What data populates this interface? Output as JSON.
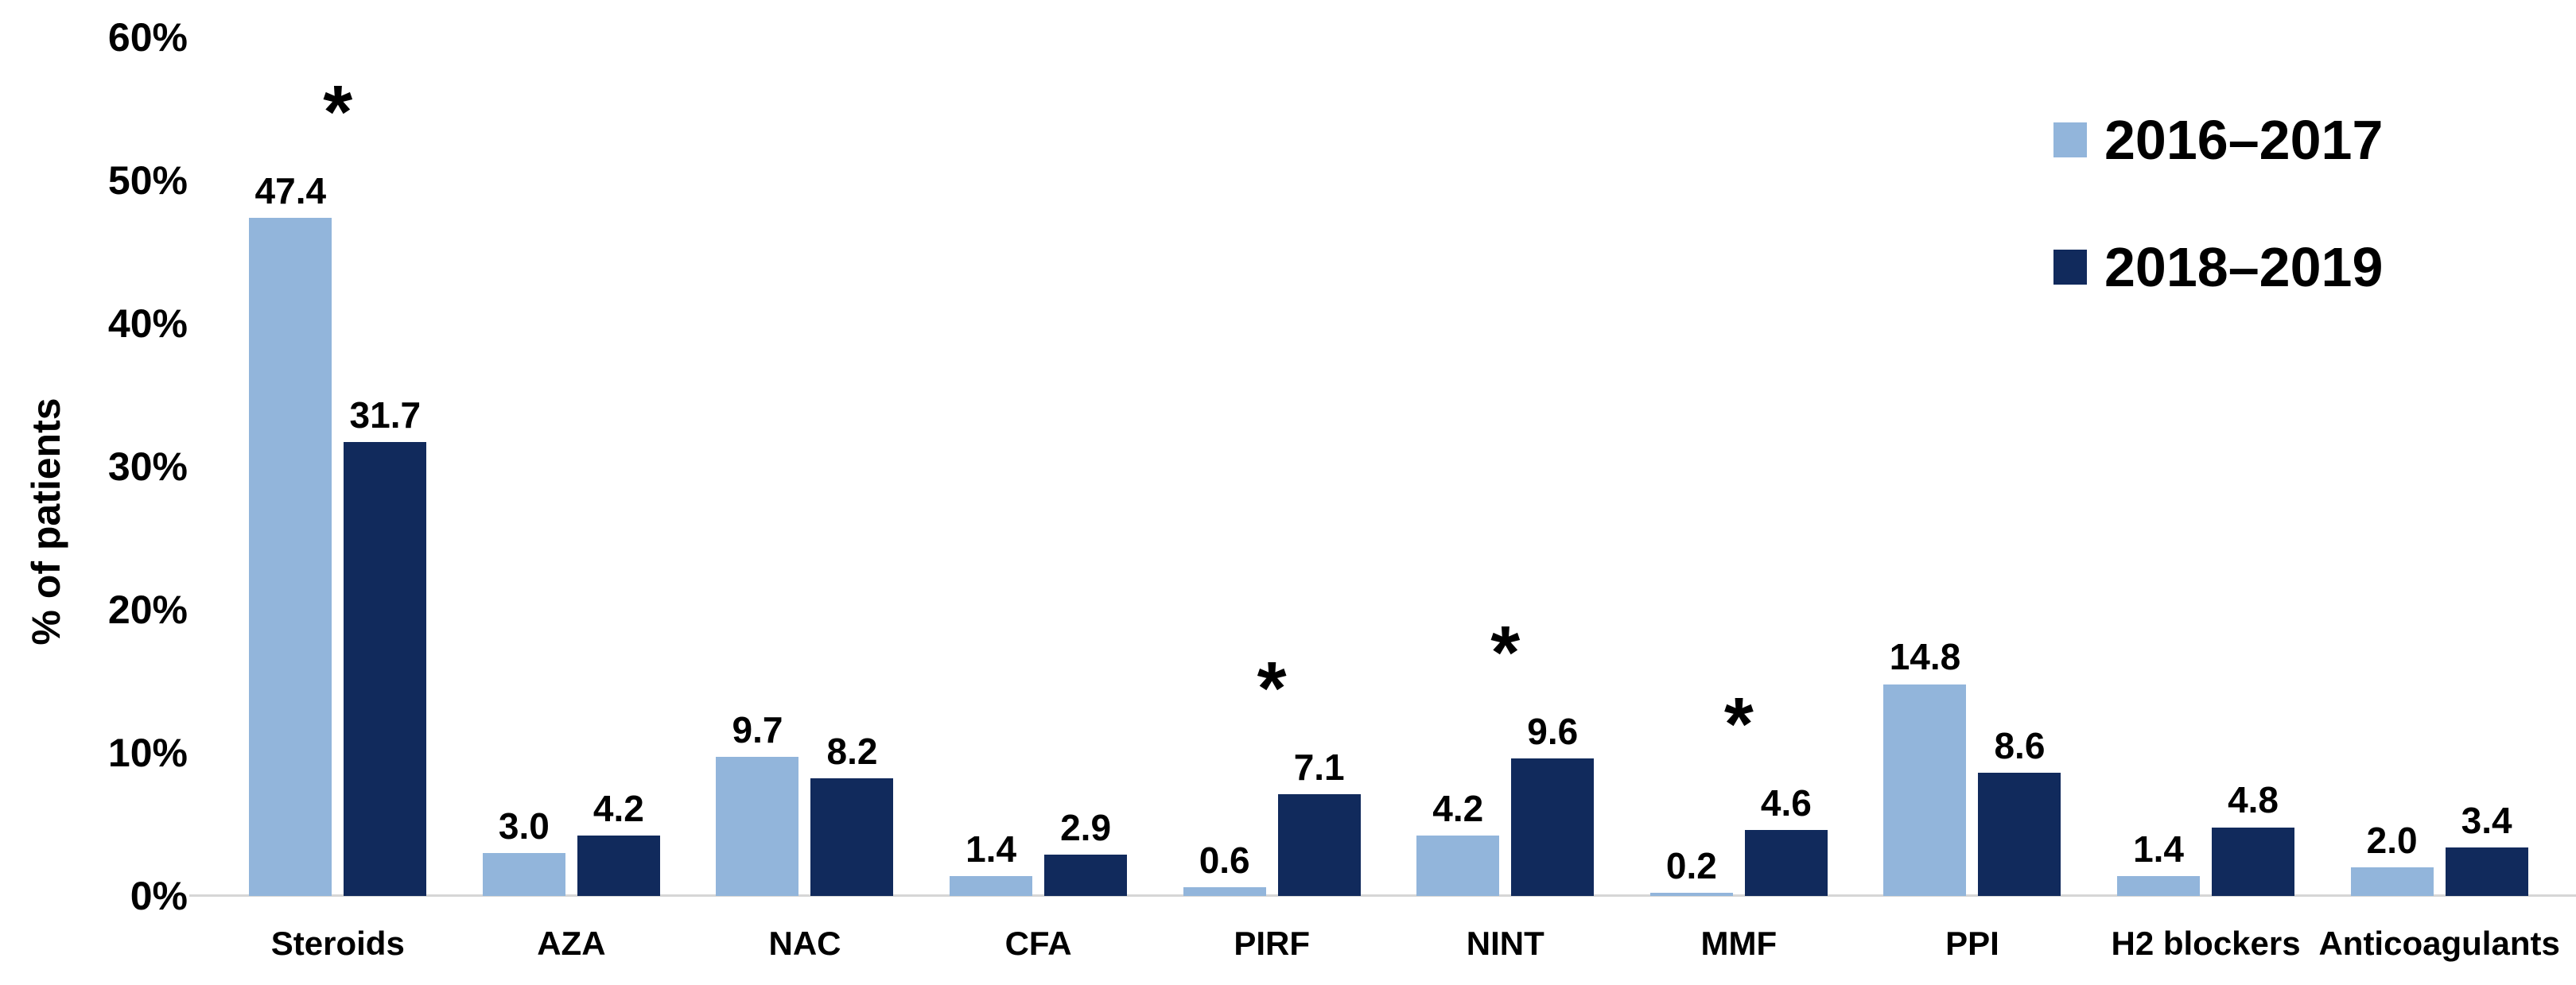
{
  "chart_data": {
    "type": "bar",
    "title": "",
    "ylabel": "% of patients",
    "xlabel": "",
    "categories": [
      "Steroids",
      "AZA",
      "NAC",
      "CFA",
      "PIRF",
      "NINT",
      "MMF",
      "PPI",
      "H2 blockers",
      "Anticoagulants"
    ],
    "series": [
      {
        "name": "2016–2017",
        "color": "#92B5DB",
        "values": [
          47.4,
          3.0,
          9.7,
          1.4,
          0.6,
          4.2,
          0.2,
          14.8,
          1.4,
          2.0
        ],
        "labels": [
          "47.4",
          "3.0",
          "9.7",
          "1.4",
          "0.6",
          "4.2",
          "0.2",
          "14.8",
          "1.4",
          "2.0"
        ]
      },
      {
        "name": "2018–2019",
        "color": "#112A5C",
        "values": [
          31.7,
          4.2,
          8.2,
          2.9,
          7.1,
          9.6,
          4.6,
          8.6,
          4.8,
          3.4
        ],
        "labels": [
          "31.7",
          "4.2",
          "8.2",
          "2.9",
          "7.1",
          "9.6",
          "4.6",
          "8.6",
          "4.8",
          "3.4"
        ]
      }
    ],
    "significance_asterisk": [
      true,
      false,
      false,
      false,
      true,
      true,
      true,
      false,
      false,
      false
    ],
    "asterisk_symbol": "*",
    "y_ticks": [
      "0%",
      "10%",
      "20%",
      "30%",
      "40%",
      "50%",
      "60%"
    ],
    "ylim": [
      0,
      60
    ],
    "grid": false,
    "legend_position": "top-right",
    "axis_line_color": "#d6d6d6"
  }
}
